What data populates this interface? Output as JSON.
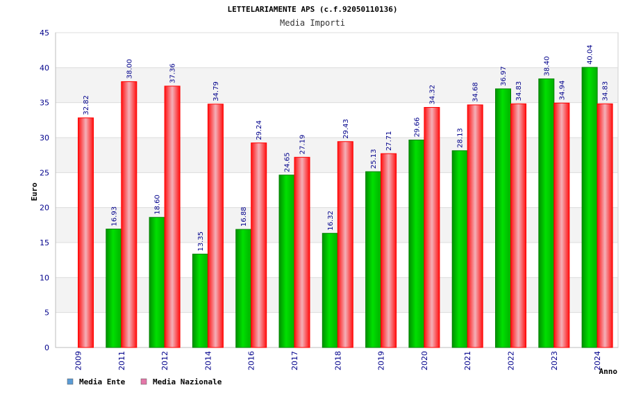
{
  "chart_data": {
    "type": "bar",
    "title": "LETTELARIAMENTE APS (c.f.92050110136)",
    "subtitle": "Media Importi",
    "xlabel": "Anno",
    "ylabel": "Euro",
    "ylim": [
      0,
      45
    ],
    "yticks": [
      0,
      5,
      10,
      15,
      20,
      25,
      30,
      35,
      40,
      45
    ],
    "categories": [
      "2009",
      "2011",
      "2012",
      "2014",
      "2016",
      "2017",
      "2018",
      "2019",
      "2020",
      "2021",
      "2022",
      "2023",
      "2024"
    ],
    "series": [
      {
        "name": "Media Ente",
        "color": "#00c000",
        "values": [
          null,
          16.93,
          18.6,
          13.35,
          16.88,
          24.65,
          16.32,
          25.13,
          29.66,
          28.13,
          36.97,
          38.4,
          40.04
        ],
        "labels": [
          "",
          "16.93",
          "18.60",
          "13.35",
          "16.88",
          "24.65",
          "16.32",
          "25.13",
          "29.66",
          "28.13",
          "36.97",
          "38.40",
          "40.04"
        ]
      },
      {
        "name": "Media Nazionale",
        "color": "#ff0000",
        "values": [
          32.82,
          38.0,
          37.36,
          34.79,
          29.24,
          27.19,
          29.43,
          27.71,
          34.32,
          34.68,
          34.83,
          34.94,
          34.83
        ],
        "labels": [
          "32.82",
          "38.00",
          "37.36",
          "34.79",
          "29.24",
          "27.19",
          "29.43",
          "27.71",
          "34.32",
          "34.68",
          "34.83",
          "34.94",
          "34.83"
        ]
      }
    ],
    "legend": [
      {
        "label": "Media Ente",
        "color": "#5b9bd5"
      },
      {
        "label": "Media Nazionale",
        "color": "#e377a8"
      }
    ],
    "legend_position": "bottom-left",
    "grid": true
  }
}
